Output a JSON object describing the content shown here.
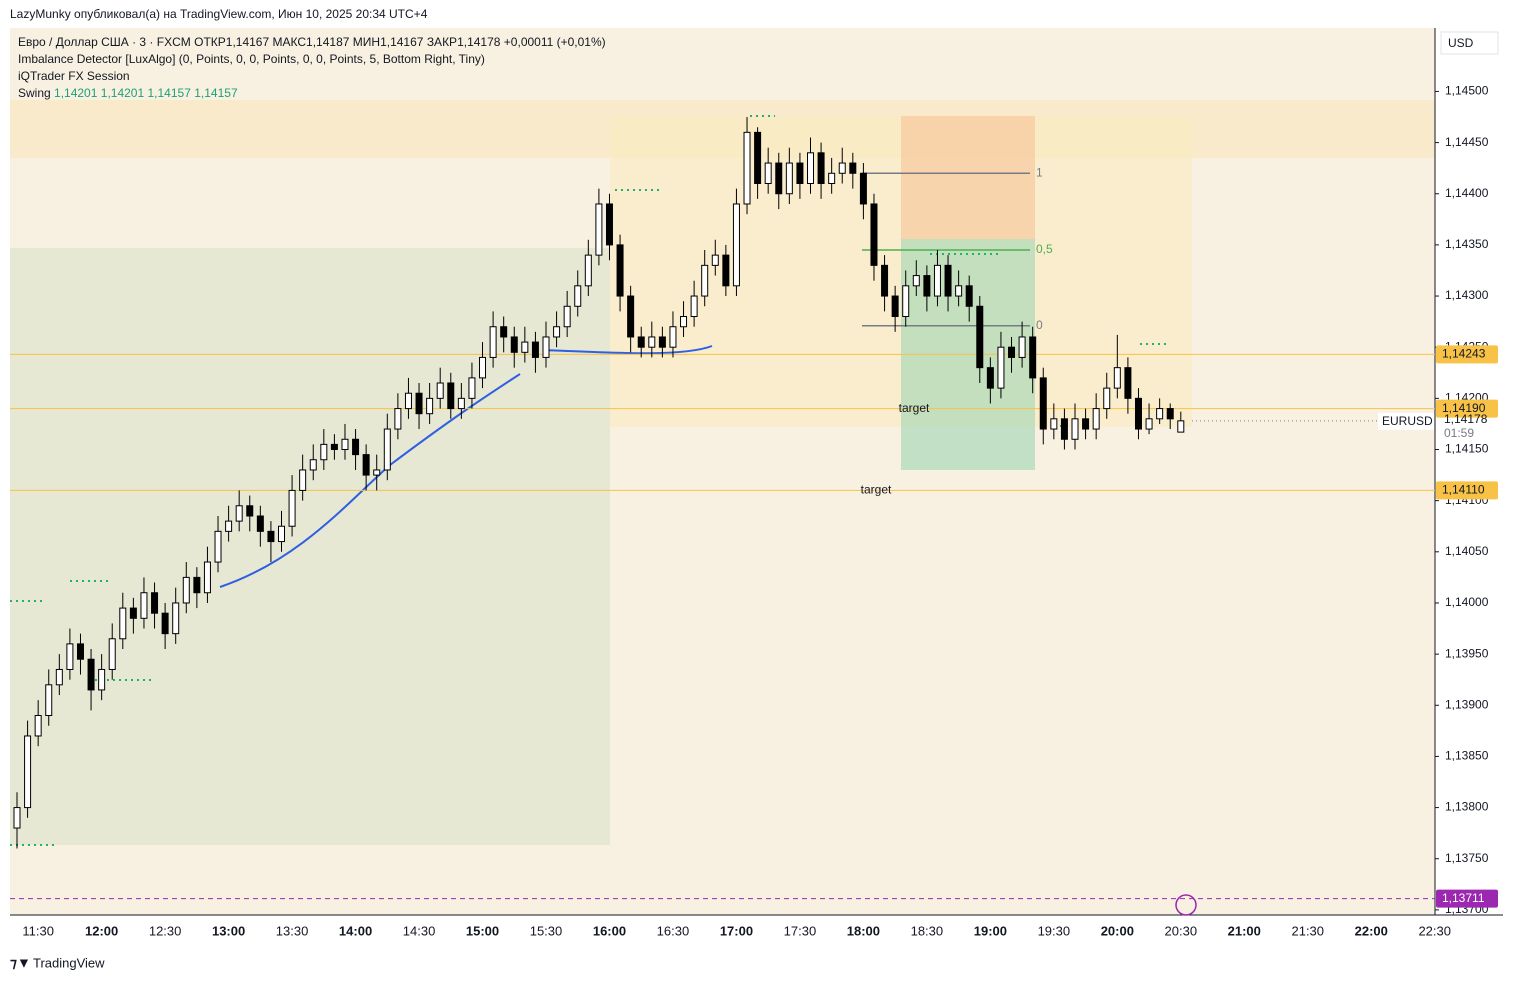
{
  "top_bar": "LazyMunky опубликовал(а) на TradingView.com, Июн 10, 2025 20:34 UTC+4",
  "footer": "TradingView",
  "currency": "USD",
  "legend": {
    "symbol": "Евро / Доллар США · 3 · FXCM",
    "open_label": "ОТКР",
    "open": "1,14167",
    "high_label": "МАКС",
    "high": "1,14187",
    "low_label": "МИН",
    "low": "1,14167",
    "close_label": "ЗАКР",
    "close": "1,14178",
    "change": "+0,00011 (+0,01%)",
    "indicator1": "Imbalance Detector [LuxAlgo] (0, Points, 0, 0, Points, 0, 0, Points, 5, Bottom Right, Tiny)",
    "indicator2": "iQTrader FX Session",
    "swing_label": "Swing",
    "swing_values": [
      "1,14201",
      "1,14201",
      "1,14157",
      "1,14157"
    ]
  },
  "chart_data": {
    "type": "candlestick",
    "up_color": "#ffffff",
    "down_color": "#000000",
    "ylim": [
      1.13695,
      1.14562
    ],
    "yticks": [
      {
        "value": 1.145,
        "label": "1,14500"
      },
      {
        "value": 1.1445,
        "label": "1,14450"
      },
      {
        "value": 1.144,
        "label": "1,14400"
      },
      {
        "value": 1.1435,
        "label": "1,14350"
      },
      {
        "value": 1.143,
        "label": "1,14300"
      },
      {
        "value": 1.1425,
        "label": "1,14250"
      },
      {
        "value": 1.142,
        "label": "1,14200"
      },
      {
        "value": 1.1415,
        "label": "1,14150"
      },
      {
        "value": 1.141,
        "label": "1,14100"
      },
      {
        "value": 1.1405,
        "label": "1,14050"
      },
      {
        "value": 1.14,
        "label": "1,14000"
      },
      {
        "value": 1.1395,
        "label": "1,13950"
      },
      {
        "value": 1.139,
        "label": "1,13900"
      },
      {
        "value": 1.1385,
        "label": "1,13850"
      },
      {
        "value": 1.138,
        "label": "1,13800"
      },
      {
        "value": 1.1375,
        "label": "1,13750"
      },
      {
        "value": 1.137,
        "label": "1,13700"
      }
    ],
    "xticks": [
      "11:30",
      "12:00",
      "12:30",
      "13:00",
      "13:30",
      "14:00",
      "14:30",
      "15:00",
      "15:30",
      "16:00",
      "16:30",
      "17:00",
      "17:30",
      "18:00",
      "18:30",
      "19:00",
      "19:30",
      "20:00",
      "20:30",
      "21:00",
      "21:30",
      "22:00",
      "22:30"
    ],
    "candles": [
      [
        1.1378,
        1.13815,
        1.1376,
        1.138
      ],
      [
        1.138,
        1.13885,
        1.1379,
        1.1387
      ],
      [
        1.1387,
        1.13905,
        1.1386,
        1.1389
      ],
      [
        1.1389,
        1.13935,
        1.1388,
        1.1392
      ],
      [
        1.1392,
        1.1395,
        1.1391,
        1.13935
      ],
      [
        1.13935,
        1.13975,
        1.13925,
        1.1396
      ],
      [
        1.1396,
        1.1397,
        1.1393,
        1.13945
      ],
      [
        1.13945,
        1.13955,
        1.13895,
        1.13915
      ],
      [
        1.13915,
        1.1395,
        1.13905,
        1.13935
      ],
      [
        1.13935,
        1.1398,
        1.13925,
        1.13965
      ],
      [
        1.13965,
        1.1401,
        1.13955,
        1.13995
      ],
      [
        1.13995,
        1.14005,
        1.1397,
        1.13985
      ],
      [
        1.13985,
        1.14025,
        1.13975,
        1.1401
      ],
      [
        1.1401,
        1.1402,
        1.13975,
        1.1399
      ],
      [
        1.1399,
        1.14,
        1.13955,
        1.1397
      ],
      [
        1.1397,
        1.14015,
        1.1396,
        1.14
      ],
      [
        1.14,
        1.1404,
        1.1399,
        1.14025
      ],
      [
        1.14025,
        1.14035,
        1.13995,
        1.1401
      ],
      [
        1.1401,
        1.14055,
        1.14,
        1.1404
      ],
      [
        1.1404,
        1.14085,
        1.1403,
        1.1407
      ],
      [
        1.1407,
        1.14095,
        1.1406,
        1.1408
      ],
      [
        1.1408,
        1.1411,
        1.1407,
        1.14095
      ],
      [
        1.14095,
        1.14105,
        1.1407,
        1.14085
      ],
      [
        1.14085,
        1.14095,
        1.14055,
        1.1407
      ],
      [
        1.1407,
        1.1408,
        1.1404,
        1.1406
      ],
      [
        1.1406,
        1.1409,
        1.1405,
        1.14075
      ],
      [
        1.14075,
        1.14125,
        1.14065,
        1.1411
      ],
      [
        1.1411,
        1.14145,
        1.141,
        1.1413
      ],
      [
        1.1413,
        1.14155,
        1.1412,
        1.1414
      ],
      [
        1.1414,
        1.1417,
        1.1413,
        1.14155
      ],
      [
        1.14155,
        1.14165,
        1.1414,
        1.1415
      ],
      [
        1.1415,
        1.14175,
        1.1414,
        1.1416
      ],
      [
        1.1416,
        1.1417,
        1.1413,
        1.14145
      ],
      [
        1.14145,
        1.14155,
        1.1411,
        1.14125
      ],
      [
        1.14125,
        1.14145,
        1.1411,
        1.1413
      ],
      [
        1.1413,
        1.14185,
        1.1412,
        1.1417
      ],
      [
        1.1417,
        1.14205,
        1.1416,
        1.1419
      ],
      [
        1.1419,
        1.1422,
        1.1418,
        1.14205
      ],
      [
        1.14205,
        1.14215,
        1.1417,
        1.14185
      ],
      [
        1.14185,
        1.14215,
        1.14175,
        1.142
      ],
      [
        1.142,
        1.1423,
        1.1419,
        1.14215
      ],
      [
        1.14215,
        1.14225,
        1.1418,
        1.1419
      ],
      [
        1.1419,
        1.14215,
        1.1418,
        1.142
      ],
      [
        1.142,
        1.14235,
        1.1419,
        1.1422
      ],
      [
        1.1422,
        1.14255,
        1.1421,
        1.1424
      ],
      [
        1.1424,
        1.14285,
        1.1423,
        1.1427
      ],
      [
        1.1427,
        1.1428,
        1.14245,
        1.1426
      ],
      [
        1.1426,
        1.1427,
        1.1423,
        1.14245
      ],
      [
        1.14245,
        1.1427,
        1.14235,
        1.14255
      ],
      [
        1.14255,
        1.14265,
        1.14225,
        1.1424
      ],
      [
        1.1424,
        1.14275,
        1.1423,
        1.1426
      ],
      [
        1.1426,
        1.14285,
        1.1425,
        1.1427
      ],
      [
        1.1427,
        1.14305,
        1.1426,
        1.1429
      ],
      [
        1.1429,
        1.14325,
        1.1428,
        1.1431
      ],
      [
        1.1431,
        1.14355,
        1.143,
        1.1434
      ],
      [
        1.1434,
        1.14405,
        1.1433,
        1.1439
      ],
      [
        1.1439,
        1.144,
        1.14335,
        1.1435
      ],
      [
        1.1435,
        1.1436,
        1.14285,
        1.143
      ],
      [
        1.143,
        1.1431,
        1.14245,
        1.1426
      ],
      [
        1.1426,
        1.1427,
        1.1424,
        1.1425
      ],
      [
        1.1425,
        1.14275,
        1.1424,
        1.1426
      ],
      [
        1.1426,
        1.1427,
        1.1424,
        1.1425
      ],
      [
        1.1425,
        1.14285,
        1.1424,
        1.1427
      ],
      [
        1.1427,
        1.14295,
        1.1426,
        1.1428
      ],
      [
        1.1428,
        1.14315,
        1.1427,
        1.143
      ],
      [
        1.143,
        1.14345,
        1.1429,
        1.1433
      ],
      [
        1.1433,
        1.14355,
        1.1432,
        1.1434
      ],
      [
        1.1434,
        1.1435,
        1.143,
        1.1431
      ],
      [
        1.1431,
        1.14405,
        1.143,
        1.1439
      ],
      [
        1.1439,
        1.14475,
        1.1438,
        1.1446
      ],
      [
        1.1446,
        1.14465,
        1.14395,
        1.1441
      ],
      [
        1.1441,
        1.14445,
        1.144,
        1.1443
      ],
      [
        1.1443,
        1.1444,
        1.14385,
        1.144
      ],
      [
        1.144,
        1.14445,
        1.1439,
        1.1443
      ],
      [
        1.1443,
        1.1444,
        1.14395,
        1.1441
      ],
      [
        1.1441,
        1.14455,
        1.144,
        1.1444
      ],
      [
        1.1444,
        1.1445,
        1.14395,
        1.1441
      ],
      [
        1.1441,
        1.14435,
        1.144,
        1.1442
      ],
      [
        1.1442,
        1.14445,
        1.1441,
        1.1443
      ],
      [
        1.1443,
        1.1444,
        1.14405,
        1.1442
      ],
      [
        1.1442,
        1.1443,
        1.14375,
        1.1439
      ],
      [
        1.1439,
        1.144,
        1.14315,
        1.1433
      ],
      [
        1.1433,
        1.1434,
        1.14285,
        1.143
      ],
      [
        1.143,
        1.1431,
        1.14265,
        1.1428
      ],
      [
        1.1428,
        1.14325,
        1.1427,
        1.1431
      ],
      [
        1.1431,
        1.14335,
        1.143,
        1.1432
      ],
      [
        1.1432,
        1.1433,
        1.14285,
        1.143
      ],
      [
        1.143,
        1.14345,
        1.1429,
        1.1433
      ],
      [
        1.1433,
        1.1434,
        1.14285,
        1.143
      ],
      [
        1.143,
        1.14325,
        1.1429,
        1.1431
      ],
      [
        1.1431,
        1.1432,
        1.14275,
        1.1429
      ],
      [
        1.1429,
        1.143,
        1.14215,
        1.1423
      ],
      [
        1.1423,
        1.1424,
        1.14195,
        1.1421
      ],
      [
        1.1421,
        1.14265,
        1.142,
        1.1425
      ],
      [
        1.1425,
        1.1426,
        1.14225,
        1.1424
      ],
      [
        1.1424,
        1.14275,
        1.1423,
        1.1426
      ],
      [
        1.1426,
        1.1427,
        1.14205,
        1.1422
      ],
      [
        1.1422,
        1.1423,
        1.14155,
        1.1417
      ],
      [
        1.1417,
        1.14195,
        1.1416,
        1.1418
      ],
      [
        1.1418,
        1.1419,
        1.1415,
        1.1416
      ],
      [
        1.1416,
        1.14195,
        1.1415,
        1.1418
      ],
      [
        1.1418,
        1.1419,
        1.1416,
        1.1417
      ],
      [
        1.1417,
        1.14205,
        1.1416,
        1.1419
      ],
      [
        1.1419,
        1.14225,
        1.1418,
        1.1421
      ],
      [
        1.1421,
        1.14262,
        1.142,
        1.1423
      ],
      [
        1.1423,
        1.1424,
        1.14185,
        1.142
      ],
      [
        1.142,
        1.1421,
        1.1416,
        1.1417
      ],
      [
        1.1417,
        1.14195,
        1.14165,
        1.1418
      ],
      [
        1.1418,
        1.142,
        1.14175,
        1.1419
      ],
      [
        1.1419,
        1.14195,
        1.1417,
        1.1418
      ],
      [
        1.14167,
        1.14187,
        1.14167,
        1.14178
      ]
    ],
    "levels": [
      {
        "value": 1.14243,
        "label": "1,14243",
        "color": "#f7c245"
      },
      {
        "value": 1.1419,
        "label": "1,14190",
        "color": "#f7c245",
        "note": "target"
      },
      {
        "value": 1.1411,
        "label": "1,14110",
        "color": "#f7c245",
        "note": "target"
      },
      {
        "value": 1.13711,
        "label": "1,13711",
        "color": "#9c27b0",
        "dashed": true
      }
    ],
    "last_price": {
      "value": 1.14178,
      "label": "1,14178",
      "symbol": "EURUSD",
      "countdown": "01:59"
    },
    "fib": [
      {
        "value": 1.1442,
        "label": "1"
      },
      {
        "value": 1.14345,
        "label": "0,5"
      },
      {
        "value": 1.14271,
        "label": "0"
      }
    ]
  }
}
